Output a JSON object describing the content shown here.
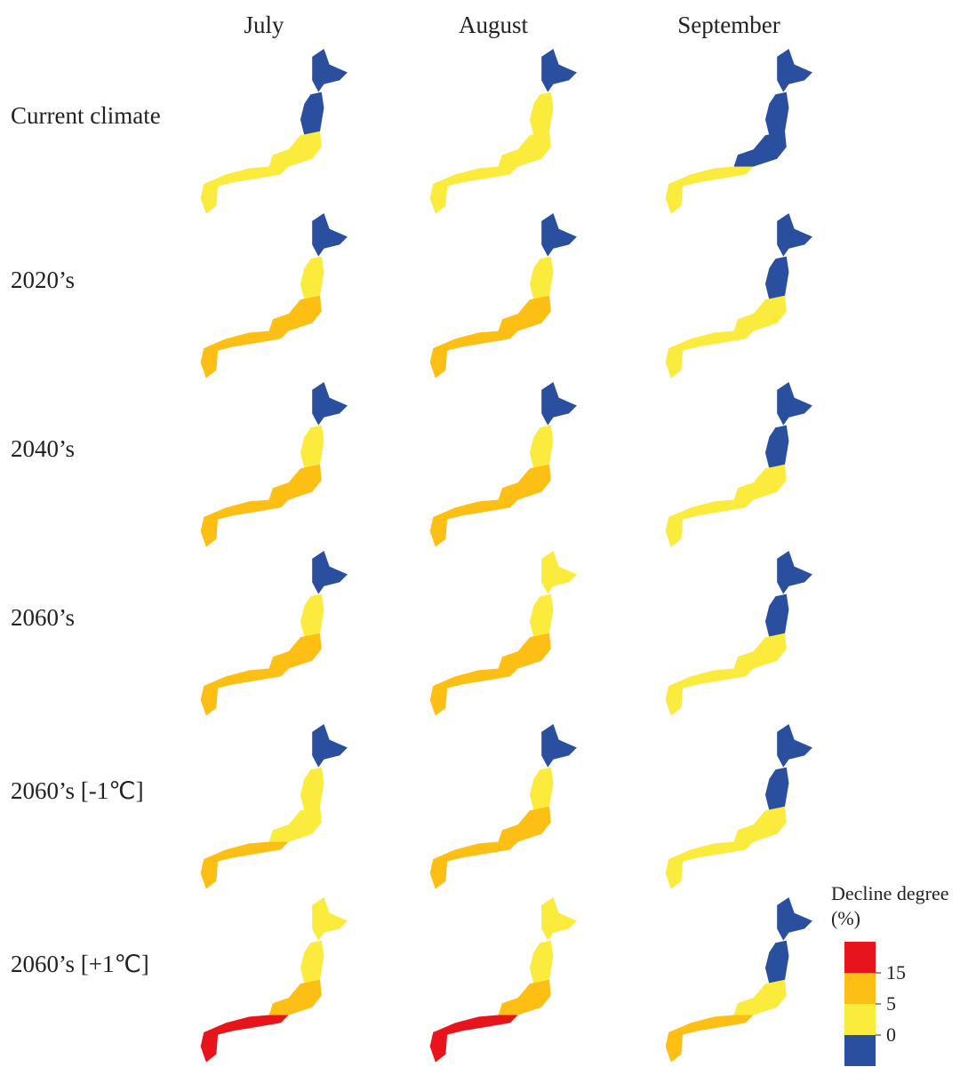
{
  "columns": [
    "July",
    "August",
    "September"
  ],
  "rows": [
    "Current climate",
    "2020’s",
    "2040’s",
    "2060’s",
    "2060’s [-1℃]",
    "2060’s [+1℃]"
  ],
  "values": [
    [
      [
        0,
        0,
        2,
        3
      ],
      [
        0,
        2,
        3,
        3
      ],
      [
        0,
        0,
        0,
        2
      ]
    ],
    [
      [
        0,
        2,
        6,
        8
      ],
      [
        0,
        3,
        8,
        10
      ],
      [
        0,
        0,
        2,
        3
      ]
    ],
    [
      [
        0,
        3,
        6,
        8
      ],
      [
        0,
        3,
        8,
        10
      ],
      [
        0,
        0,
        2,
        3
      ]
    ],
    [
      [
        0,
        3,
        8,
        10
      ],
      [
        2,
        3,
        10,
        12
      ],
      [
        0,
        0,
        3,
        4
      ]
    ],
    [
      [
        0,
        2,
        4,
        7
      ],
      [
        0,
        3,
        6,
        8
      ],
      [
        0,
        0,
        1,
        3
      ]
    ],
    [
      [
        3,
        4,
        8,
        16
      ],
      [
        3,
        4,
        10,
        17
      ],
      [
        0,
        0,
        3,
        7
      ]
    ]
  ],
  "legend": {
    "title": "Decline degree (%)",
    "ticks": [
      15,
      5,
      0
    ],
    "colors": [
      "#e8141c",
      "#fdbf14",
      "#fbeb3c",
      "#2a4f9e"
    ]
  }
}
